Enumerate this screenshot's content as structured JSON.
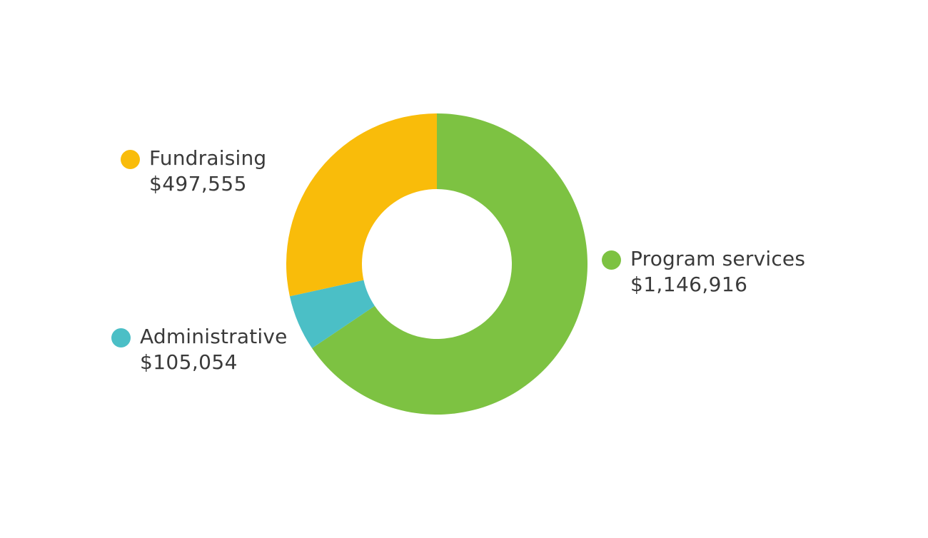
{
  "chart_data": {
    "type": "pie",
    "style": "donut",
    "categories": [
      "Program services",
      "Administrative",
      "Fundraising"
    ],
    "values": [
      1146916,
      105054,
      497555
    ],
    "value_labels": [
      "$1,146,916",
      "$105,054",
      "$497,555"
    ],
    "colors": [
      "#7dc242",
      "#4bbfc6",
      "#f9bc0a"
    ],
    "title": "",
    "legend": "labels beside slices"
  }
}
